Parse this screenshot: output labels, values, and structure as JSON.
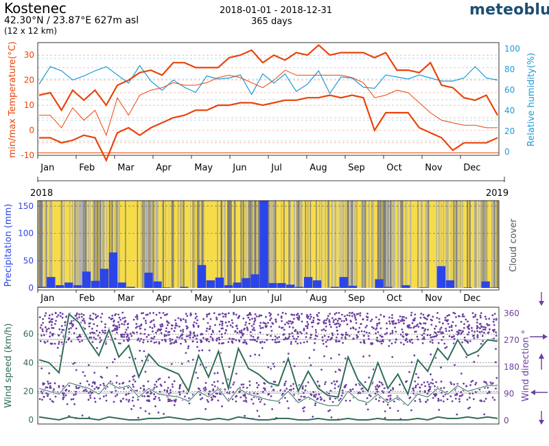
{
  "header": {
    "location": "Kostenec",
    "coordinates": "42.30°N / 23.87°E   627m asl",
    "grid_size": "(12 x 12 km)",
    "date_range": "2018-01-01 - 2018-12-31",
    "days": "365 days",
    "brand": "meteoblue"
  },
  "colors": {
    "temp": "#e8430a",
    "humidity": "#1e9ad6",
    "precip": "#2b45e8",
    "sun": "#f7dc4a",
    "cloud": "#8f8f8f",
    "wind": "#2e6b58",
    "direction": "#6c3fa0"
  },
  "chart_data": [
    {
      "type": "line",
      "name": "temperature-humidity",
      "months": [
        "Jan",
        "Feb",
        "Mar",
        "Apr",
        "May",
        "Jun",
        "Jul",
        "Aug",
        "Sep",
        "Oct",
        "Nov",
        "Dec"
      ],
      "ylabel_left": "min/max Temperature(°C)",
      "ylabel_right": "Relative humidity(%)",
      "ylim_left": [
        -10,
        35
      ],
      "yticks_left": [
        "30",
        "20",
        "10",
        "0",
        "-10"
      ],
      "ylim_right": [
        0,
        100
      ],
      "yticks_right": [
        "100",
        "80",
        "60",
        "40",
        "20",
        "0"
      ],
      "year_start_label": "2018",
      "year_end_label": "2019",
      "series": [
        {
          "name": "max temperature",
          "values": [
            14,
            15,
            8,
            16,
            12,
            16,
            10,
            18,
            20,
            23,
            24,
            22,
            27,
            27,
            25,
            25,
            25,
            29,
            30,
            32,
            27,
            30,
            28,
            31,
            30,
            34,
            30,
            31,
            31,
            31,
            29,
            31,
            24,
            24,
            23,
            27,
            18,
            17,
            13,
            12,
            14,
            6
          ]
        },
        {
          "name": "mean temperature",
          "values": [
            6,
            6,
            1,
            9,
            4,
            8,
            -2,
            13,
            6,
            14,
            16,
            17,
            19,
            18,
            18,
            19,
            21,
            22,
            21,
            19,
            17,
            20,
            24,
            22,
            22,
            22,
            22,
            22,
            21,
            19,
            13,
            14,
            16,
            15,
            11,
            7,
            4,
            3,
            2,
            2,
            1,
            1
          ]
        },
        {
          "name": "min temperature",
          "values": [
            -3,
            -3,
            -5,
            -4,
            -2,
            -3,
            -12,
            -1,
            1,
            -2,
            1,
            3,
            5,
            6,
            8,
            8,
            10,
            10,
            11,
            11,
            10,
            11,
            12,
            12,
            13,
            13,
            14,
            13,
            14,
            13,
            0,
            7,
            7,
            7,
            1,
            -1,
            -3,
            -8,
            -5,
            -5,
            -5,
            -3
          ]
        },
        {
          "name": "reference line",
          "values": [
            -9,
            -9
          ]
        },
        {
          "name": "relative humidity",
          "values": [
            65,
            82,
            78,
            69,
            73,
            78,
            82,
            74,
            66,
            83,
            68,
            59,
            69,
            62,
            57,
            73,
            70,
            71,
            74,
            55,
            75,
            66,
            75,
            58,
            65,
            78,
            56,
            72,
            71,
            62,
            61,
            74,
            72,
            70,
            74,
            71,
            68,
            68,
            71,
            82,
            71,
            69
          ]
        }
      ]
    },
    {
      "type": "bar",
      "name": "precipitation-cloud",
      "ylabel_left": "Precipitation (mm)",
      "ylabel_right": "Cloud cover",
      "ylim": [
        0,
        160
      ],
      "yticks": [
        "150",
        "100",
        "50",
        "0"
      ],
      "months": [
        "Jan",
        "Feb",
        "Mar",
        "Apr",
        "May",
        "Jun",
        "Jul",
        "Aug",
        "Sep",
        "Oct",
        "Nov",
        "Dec"
      ],
      "values": [
        2,
        20,
        5,
        10,
        5,
        30,
        13,
        35,
        65,
        10,
        2,
        0,
        28,
        12,
        1,
        0,
        2,
        0,
        42,
        14,
        19,
        5,
        10,
        18,
        25,
        160,
        9,
        9,
        6,
        2,
        20,
        14,
        0,
        2,
        20,
        4,
        0,
        0,
        16,
        2,
        0,
        5,
        0,
        1,
        0,
        40,
        14,
        0,
        1,
        0,
        12,
        1
      ]
    },
    {
      "type": "scatter",
      "name": "wind",
      "ylabel_left": "Wind speed (km/h)",
      "ylabel_right": "Wind direction °",
      "ylim_left": [
        0,
        75
      ],
      "yticks_left": [
        "60",
        "40",
        "20",
        "0"
      ],
      "ylim_right": [
        0,
        360
      ],
      "yticks_right": [
        "360",
        "270",
        "180",
        "90",
        "0"
      ],
      "months": [
        "Jan",
        "Feb",
        "Mar",
        "Apr",
        "May",
        "Jun",
        "Jul",
        "Aug",
        "Sep",
        "Oct",
        "Nov",
        "Dec"
      ],
      "series": [
        {
          "name": "max wind speed",
          "values": [
            42,
            40,
            33,
            74,
            68,
            55,
            45,
            63,
            44,
            52,
            30,
            46,
            38,
            35,
            32,
            20,
            45,
            30,
            48,
            22,
            50,
            36,
            32,
            26,
            24,
            43,
            20,
            34,
            22,
            17,
            16,
            44,
            28,
            20,
            40,
            22,
            32,
            18,
            42,
            34,
            50,
            42,
            56,
            45,
            48,
            56,
            55
          ]
        },
        {
          "name": "mean wind speed",
          "values": [
            22,
            20,
            18,
            26,
            24,
            22,
            18,
            26,
            22,
            24,
            16,
            22,
            18,
            17,
            16,
            13,
            20,
            16,
            22,
            13,
            22,
            18,
            16,
            14,
            13,
            20,
            12,
            16,
            12,
            10,
            10,
            20,
            14,
            12,
            18,
            12,
            16,
            10,
            18,
            16,
            22,
            18,
            24,
            20,
            22,
            24,
            24
          ]
        },
        {
          "name": "min wind speed",
          "values": [
            2,
            1,
            0,
            2,
            1,
            1,
            0,
            2,
            1,
            0,
            0,
            1,
            1,
            2,
            1,
            0,
            1,
            0,
            1,
            0,
            2,
            1,
            0,
            0,
            1,
            1,
            0,
            0,
            1,
            0,
            0,
            1,
            0,
            0,
            1,
            0,
            0,
            0,
            1,
            0,
            2,
            1,
            1,
            2,
            1,
            2,
            1
          ]
        },
        {
          "name": "wind direction"
        }
      ]
    }
  ]
}
